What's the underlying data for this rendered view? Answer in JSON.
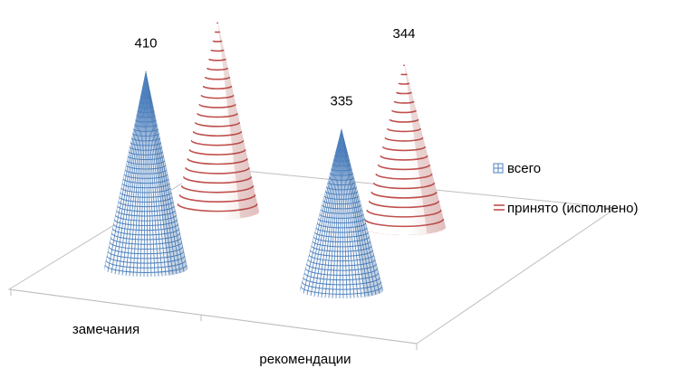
{
  "chart_data": {
    "type": "bar",
    "bar_shape": "cone",
    "view": "3d",
    "categories": [
      "замечания",
      "рекомендации"
    ],
    "series": [
      {
        "name": "всего",
        "values": [
          410,
          335
        ],
        "color": "#4f81bd",
        "pattern": "grid"
      },
      {
        "name": "принято (исполнено)",
        "values": [
          400,
          344
        ],
        "color": "#c0504d",
        "pattern": "horizontal-stripes"
      }
    ],
    "data_labels": true,
    "legend_position": "right",
    "grid": false
  }
}
